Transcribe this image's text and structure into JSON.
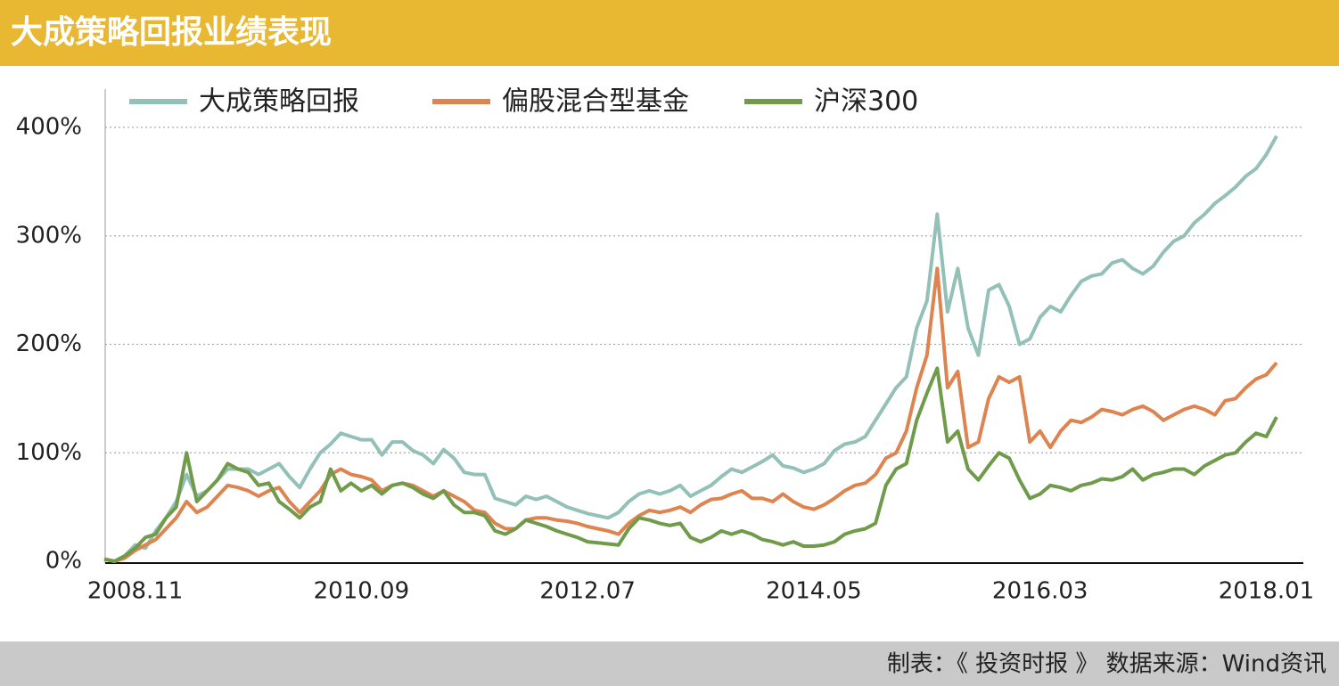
{
  "chart_data": {
    "type": "line",
    "title": "大成策略回报业绩表现",
    "source": "制表：《 投资时报 》 数据来源：Wind资讯",
    "categories": [
      null,
      null,
      null,
      "2008.11",
      null,
      null,
      null,
      null,
      null,
      null,
      null,
      null,
      null,
      null,
      null,
      null,
      null,
      null,
      null,
      null,
      null,
      null,
      null,
      null,
      null,
      "2010.09",
      null,
      null,
      null,
      null,
      null,
      null,
      null,
      null,
      null,
      null,
      null,
      null,
      null,
      null,
      null,
      null,
      null,
      null,
      null,
      null,
      null,
      "2012.07",
      null,
      null,
      null,
      null,
      null,
      null,
      null,
      null,
      null,
      null,
      null,
      null,
      null,
      null,
      null,
      null,
      null,
      null,
      null,
      null,
      null,
      "2014.05",
      null,
      null,
      null,
      null,
      null,
      null,
      null,
      null,
      null,
      null,
      null,
      null,
      null,
      null,
      null,
      null,
      null,
      null,
      null,
      null,
      null,
      "2016.03",
      null,
      null,
      null,
      null,
      null,
      null,
      null,
      null,
      null,
      null,
      null,
      null,
      null,
      null,
      null,
      null,
      null,
      null,
      null,
      null,
      null,
      "2018.01",
      null
    ],
    "series": [
      {
        "name": "大成策略回报",
        "color": "#93c0b7",
        "values": [
          2,
          0,
          5,
          15,
          12,
          28,
          40,
          55,
          80,
          60,
          65,
          75,
          85,
          85,
          85,
          80,
          85,
          90,
          78,
          68,
          85,
          100,
          108,
          118,
          115,
          112,
          112,
          98,
          110,
          110,
          102,
          98,
          90,
          103,
          95,
          82,
          80,
          80,
          58,
          55,
          52,
          60,
          57,
          60,
          55,
          50,
          47,
          44,
          42,
          40,
          45,
          55,
          62,
          65,
          62,
          65,
          70,
          60,
          65,
          70,
          78,
          85,
          82,
          87,
          92,
          98,
          88,
          86,
          82,
          85,
          90,
          102,
          108,
          110,
          115,
          130,
          145,
          160,
          170,
          215,
          240,
          320,
          230,
          270,
          215,
          190,
          250,
          255,
          235,
          200,
          205,
          225,
          235,
          230,
          245,
          258,
          263,
          265,
          275,
          278,
          270,
          265,
          272,
          285,
          295,
          300,
          312,
          320,
          330,
          337,
          345,
          355,
          362,
          375,
          392
        ]
      },
      {
        "name": "偏股混合型基金",
        "color": "#dd8450",
        "values": [
          2,
          0,
          3,
          10,
          15,
          20,
          30,
          40,
          55,
          45,
          50,
          60,
          70,
          68,
          65,
          60,
          65,
          68,
          55,
          45,
          55,
          65,
          80,
          85,
          80,
          78,
          75,
          65,
          70,
          72,
          70,
          65,
          60,
          65,
          60,
          55,
          47,
          45,
          35,
          30,
          30,
          38,
          40,
          40,
          38,
          37,
          35,
          32,
          30,
          28,
          25,
          35,
          42,
          47,
          45,
          47,
          50,
          45,
          52,
          57,
          58,
          62,
          65,
          58,
          58,
          55,
          62,
          55,
          50,
          48,
          52,
          58,
          65,
          70,
          72,
          80,
          95,
          100,
          120,
          160,
          190,
          270,
          160,
          175,
          105,
          110,
          150,
          170,
          165,
          170,
          110,
          120,
          105,
          120,
          130,
          128,
          133,
          140,
          138,
          135,
          140,
          143,
          138,
          130,
          135,
          140,
          143,
          140,
          135,
          148,
          150,
          160,
          168,
          172,
          183
        ]
      },
      {
        "name": "沪深300",
        "color": "#709b4a",
        "values": [
          2,
          0,
          5,
          12,
          22,
          25,
          40,
          50,
          100,
          55,
          65,
          75,
          90,
          85,
          82,
          70,
          72,
          55,
          48,
          40,
          50,
          55,
          85,
          65,
          72,
          65,
          70,
          62,
          70,
          72,
          68,
          62,
          58,
          65,
          52,
          45,
          45,
          42,
          28,
          25,
          30,
          38,
          35,
          32,
          28,
          25,
          22,
          18,
          17,
          16,
          15,
          30,
          40,
          38,
          35,
          33,
          35,
          22,
          18,
          22,
          28,
          25,
          28,
          25,
          20,
          18,
          15,
          18,
          14,
          14,
          15,
          18,
          25,
          28,
          30,
          35,
          70,
          85,
          90,
          130,
          155,
          178,
          110,
          120,
          85,
          75,
          88,
          100,
          95,
          75,
          58,
          62,
          70,
          68,
          65,
          70,
          72,
          76,
          75,
          78,
          85,
          75,
          80,
          82,
          85,
          85,
          80,
          88,
          93,
          98,
          100,
          110,
          118,
          115,
          133
        ]
      }
    ],
    "ylim": [
      0,
      400
    ],
    "yticks": [
      {
        "value": 0,
        "label": "0%"
      },
      {
        "value": 100,
        "label": "100%"
      },
      {
        "value": 200,
        "label": "200%"
      },
      {
        "value": 300,
        "label": "300%"
      },
      {
        "value": 400,
        "label": "400%"
      }
    ],
    "grid": true
  }
}
